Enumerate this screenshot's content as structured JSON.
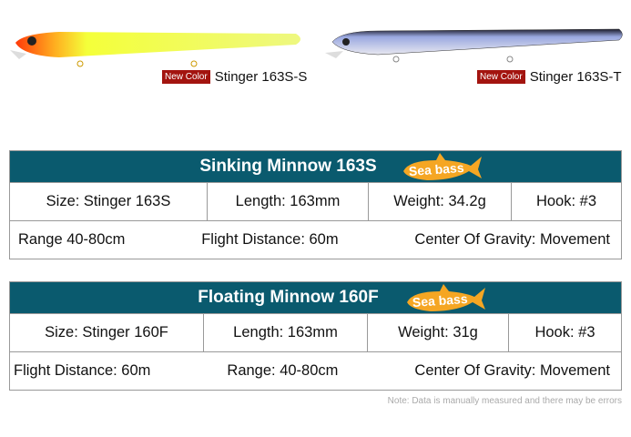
{
  "products": [
    {
      "badge": "New Color",
      "name": "Stinger 163S-S",
      "colors": [
        "#ff3a0a",
        "#f4ff3a"
      ]
    },
    {
      "badge": "New Color",
      "name": "Stinger 163S-T",
      "colors": [
        "#1a1a2a",
        "#c8ccd8"
      ]
    }
  ],
  "tables": [
    {
      "title": "Sinking Minnow 163S",
      "tag": "Sea bass",
      "row1": [
        "Size: Stinger 163S",
        "Length: 163mm",
        "Weight: 34.2g",
        "Hook: #3"
      ],
      "row2": [
        "Range 40-80cm",
        "Flight Distance: 60m",
        "Center Of Gravity: Movement"
      ]
    },
    {
      "title": "Floating Minnow 160F",
      "tag": "Sea bass",
      "row1": [
        "Size: Stinger 160F",
        "Length: 163mm",
        "Weight: 31g",
        "Hook: #3"
      ],
      "row2": [
        "Flight Distance: 60m",
        "Range: 40-80cm",
        "Center Of Gravity: Movement"
      ]
    }
  ],
  "note": "Note: Data is manually measured and there may be errors",
  "colors": {
    "header": "#0a5a6e",
    "tag": "#f5a623",
    "badge": "#a3140f"
  }
}
